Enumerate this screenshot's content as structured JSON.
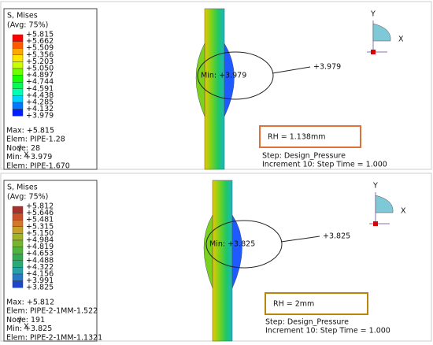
{
  "panels": [
    {
      "legend": {
        "title": "S, Mises",
        "subtitle": "(Avg: 75%)",
        "values": [
          "+5.815",
          "+5.662",
          "+5.509",
          "+5.356",
          "+5.203",
          "+5.050",
          "+4.897",
          "+4.744",
          "+4.591",
          "+4.438",
          "+4.285",
          "+4.132",
          "+3.979"
        ],
        "colors": [
          "#ff0000",
          "#ff5a00",
          "#ffa800",
          "#ffe400",
          "#c8ff00",
          "#6eff00",
          "#14ff00",
          "#00ff50",
          "#00ffb4",
          "#00d2ff",
          "#0078ff",
          "#001eff"
        ]
      },
      "extremes": [
        "Max: +5.815",
        "Elem: PIPE-1.28",
        "Node: 28",
        "Min: +3.979",
        "Elem: PIPE-1.670"
      ],
      "min_label": "Min: +3.979",
      "callout": "+3.979",
      "rh": "RH = 1.138mm",
      "step": "Step: Design_Pressure",
      "increment": "Increment     10: Step Time =     1.000"
    },
    {
      "legend": {
        "title": "S, Mises",
        "subtitle": "(Avg: 75%)",
        "values": [
          "+5.812",
          "+5.646",
          "+5.481",
          "+5.315",
          "+5.150",
          "+4.984",
          "+4.819",
          "+4.653",
          "+4.488",
          "+4.322",
          "+4.156",
          "+3.991",
          "+3.825"
        ],
        "colors": [
          "#a8322a",
          "#c8502a",
          "#d2782a",
          "#c8a028",
          "#a0b428",
          "#78b432",
          "#50b43c",
          "#32aa50",
          "#28aa78",
          "#28a0aa",
          "#2878c8",
          "#1e46c8"
        ]
      },
      "extremes": [
        "Max: +5.812",
        "Elem: PIPE-2-1MM-1.522",
        "Node: 191",
        "Min: +3.825",
        "Elem: PIPE-2-1MM-1.1321"
      ],
      "min_label": "Min: +3.825",
      "callout": "+3.825",
      "rh": "RH = 2mm",
      "step": "Step: Design_Pressure",
      "increment": "Increment     10: Step Time =     1.000"
    }
  ],
  "triad": {
    "y": "Y",
    "x": "X"
  }
}
